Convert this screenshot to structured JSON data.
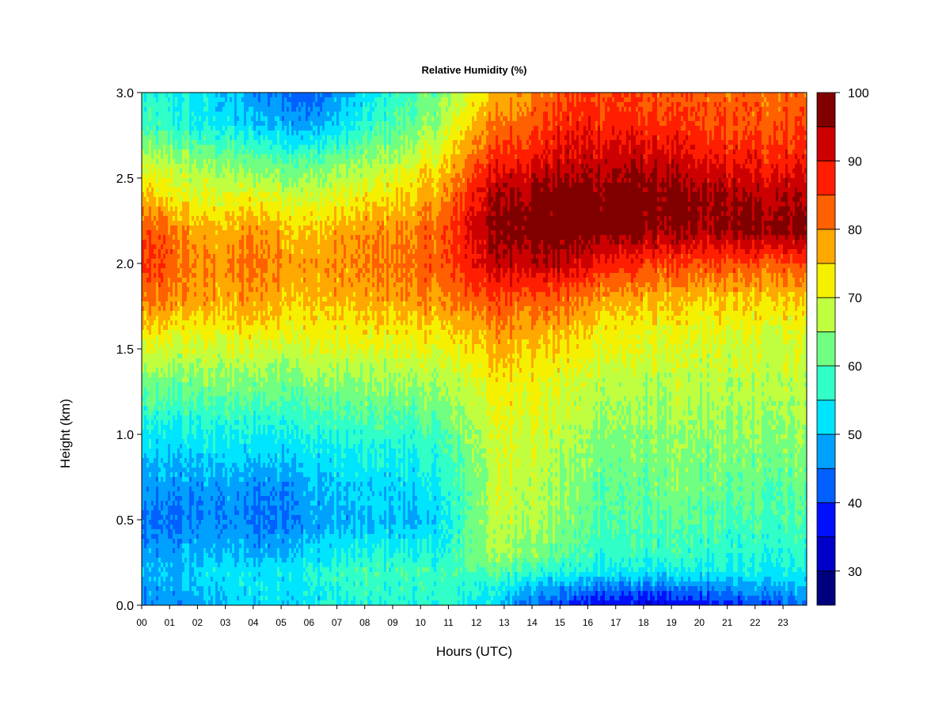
{
  "chart_data": {
    "type": "heatmap",
    "title": "Relative Humidity (%)",
    "xlabel": "Hours (UTC)",
    "ylabel": "Height (km)",
    "x_ticks": [
      "00",
      "01",
      "02",
      "03",
      "04",
      "05",
      "06",
      "07",
      "08",
      "09",
      "10",
      "11",
      "12",
      "13",
      "14",
      "15",
      "16",
      "17",
      "18",
      "19",
      "20",
      "21",
      "22",
      "23"
    ],
    "y_ticks": [
      "0.0",
      "0.5",
      "1.0",
      "1.5",
      "2.0",
      "2.5",
      "3.0"
    ],
    "xlim": [
      0,
      23.85
    ],
    "ylim": [
      0,
      3.0
    ],
    "colorbar": {
      "min": 25,
      "max": 100,
      "levels": [
        25,
        30,
        35,
        40,
        45,
        50,
        55,
        60,
        65,
        70,
        75,
        80,
        85,
        90,
        95,
        100
      ],
      "colors": [
        "#00007f",
        "#0000c8",
        "#0010ff",
        "#0060ff",
        "#00a0ff",
        "#00e5ff",
        "#30ffc8",
        "#70ff80",
        "#c0ff40",
        "#f5f000",
        "#ffa800",
        "#ff6000",
        "#ff1e00",
        "#cc0000",
        "#800000"
      ],
      "tick_labels": [
        "30",
        "40",
        "50",
        "60",
        "70",
        "80",
        "90",
        "100"
      ]
    },
    "hours": [
      0,
      1,
      2,
      3,
      4,
      5,
      6,
      7,
      8,
      9,
      10,
      11,
      12,
      13,
      14,
      15,
      16,
      17,
      18,
      19,
      20,
      21,
      22,
      23.85
    ],
    "heights_km": [
      0,
      0.1,
      0.2,
      0.3,
      0.5,
      0.7,
      1.0,
      1.3,
      1.6,
      1.8,
      2.0,
      2.2,
      2.4,
      2.6,
      2.8,
      3.0
    ],
    "rh_grid": [
      [
        45,
        44,
        47,
        50,
        52,
        52,
        53,
        55,
        56,
        56,
        56,
        56,
        55,
        50,
        44,
        40,
        37,
        35,
        35,
        35,
        36,
        38,
        40,
        45
      ],
      [
        47,
        48,
        50,
        52,
        53,
        53,
        54,
        56,
        57,
        57,
        57,
        57,
        56,
        54,
        50,
        47,
        45,
        44,
        44,
        44,
        45,
        46,
        48,
        50
      ],
      [
        49,
        49,
        51,
        53,
        53,
        54,
        55,
        57,
        58,
        58,
        58,
        58,
        60,
        60,
        58,
        56,
        55,
        54,
        54,
        54,
        54,
        54,
        54,
        55
      ],
      [
        47,
        47,
        49,
        50,
        48,
        50,
        52,
        54,
        55,
        56,
        55,
        56,
        63,
        66,
        64,
        60,
        58,
        57,
        57,
        57,
        57,
        56,
        56,
        57
      ],
      [
        44,
        43,
        45,
        46,
        44,
        45,
        47,
        49,
        49,
        50,
        49,
        54,
        64,
        68,
        67,
        64,
        61,
        60,
        60,
        60,
        60,
        59,
        59,
        60
      ],
      [
        46,
        46,
        47,
        48,
        46,
        47,
        49,
        50,
        51,
        52,
        52,
        56,
        64,
        69,
        68,
        65,
        62,
        61,
        61,
        62,
        62,
        61,
        61,
        62
      ],
      [
        53,
        53,
        54,
        55,
        54,
        55,
        56,
        56,
        57,
        57,
        57,
        60,
        66,
        70,
        70,
        67,
        65,
        64,
        64,
        64,
        64,
        64,
        64,
        65
      ],
      [
        62,
        62,
        63,
        63,
        63,
        63,
        64,
        64,
        64,
        65,
        65,
        66,
        70,
        73,
        72,
        70,
        68,
        67,
        67,
        67,
        67,
        67,
        67,
        68
      ],
      [
        73,
        72,
        72,
        72,
        73,
        72,
        72,
        72,
        72,
        73,
        73,
        74,
        77,
        79,
        78,
        76,
        74,
        72,
        71,
        71,
        70,
        70,
        70,
        71
      ],
      [
        82,
        80,
        78,
        77,
        79,
        77,
        76,
        77,
        77,
        78,
        79,
        80,
        84,
        85,
        84,
        83,
        80,
        78,
        77,
        76,
        75,
        75,
        75,
        76
      ],
      [
        86,
        83,
        80,
        79,
        82,
        80,
        78,
        79,
        80,
        81,
        82,
        84,
        90,
        94,
        94,
        93,
        91,
        88,
        86,
        85,
        84,
        84,
        84,
        85
      ],
      [
        84,
        81,
        77,
        76,
        79,
        77,
        75,
        77,
        78,
        79,
        81,
        84,
        93,
        97,
        99,
        99,
        99,
        98,
        97,
        96,
        95,
        96,
        97,
        98
      ],
      [
        75,
        72,
        70,
        70,
        71,
        70,
        69,
        70,
        72,
        74,
        76,
        80,
        90,
        96,
        97,
        98,
        98,
        98,
        98,
        97,
        96,
        95,
        94,
        95
      ],
      [
        68,
        66,
        64,
        63,
        62,
        61,
        60,
        62,
        64,
        67,
        70,
        74,
        84,
        88,
        90,
        92,
        93,
        94,
        93,
        92,
        90,
        89,
        88,
        89
      ],
      [
        58,
        57,
        55,
        54,
        51,
        50,
        48,
        52,
        56,
        60,
        63,
        68,
        78,
        82,
        84,
        87,
        88,
        88,
        87,
        86,
        85,
        84,
        84,
        85
      ],
      [
        56,
        55,
        53,
        50,
        46,
        44,
        41,
        47,
        52,
        57,
        60,
        64,
        72,
        77,
        80,
        84,
        85,
        85,
        84,
        84,
        83,
        82,
        82,
        83
      ]
    ]
  }
}
